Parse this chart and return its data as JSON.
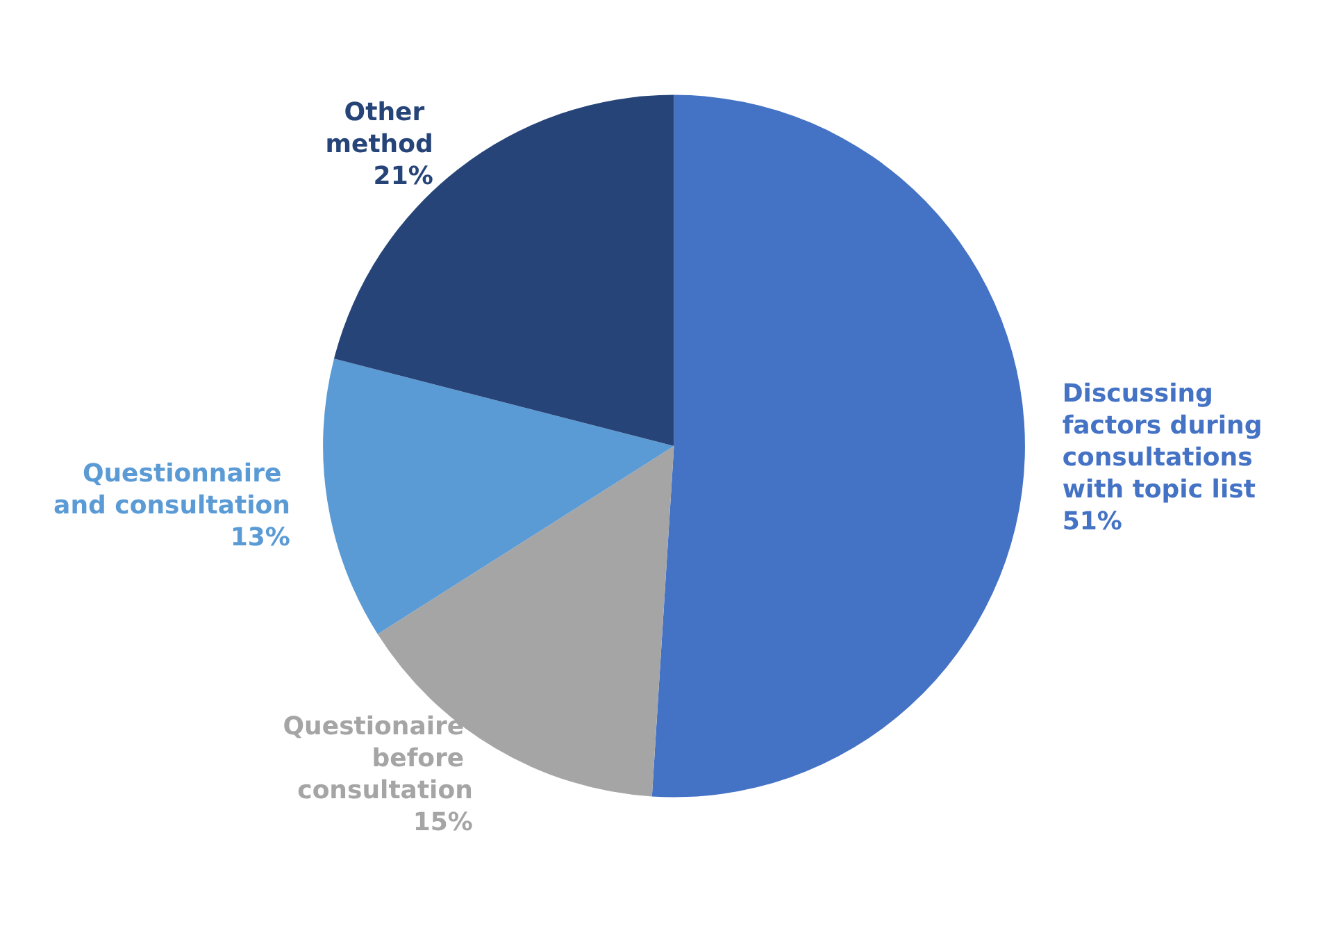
{
  "chart_data": {
    "type": "pie",
    "categories": [
      "Discussing factors during consultations with topic list",
      "Questionaire before consultation",
      "Questionnaire and consultation",
      "Other method"
    ],
    "values": [
      51,
      15,
      13,
      21
    ],
    "value_labels": [
      "51%",
      "15%",
      "13%",
      "21%"
    ],
    "colors": [
      "#4472c4",
      "#a5a5a5",
      "#5b9bd5",
      "#264478"
    ],
    "legend": false
  }
}
